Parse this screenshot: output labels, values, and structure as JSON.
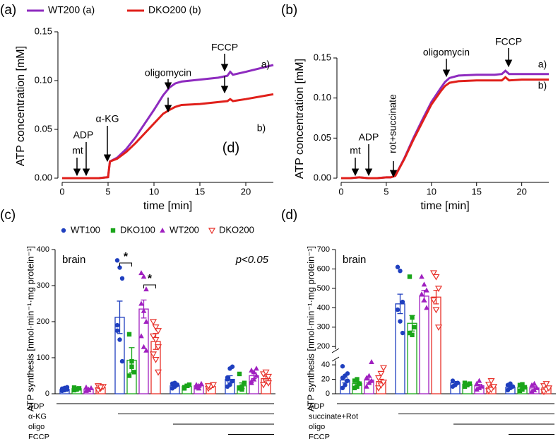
{
  "chart_data": [
    {
      "type": "line",
      "panel_label": "(a)",
      "xlabel": "time [min]",
      "ylabel": "ATP concentration [mM]",
      "xlim": [
        0,
        23
      ],
      "xticks": [
        0,
        5,
        10,
        15,
        20
      ],
      "ylim": [
        0,
        0.15
      ],
      "yticks": [
        {
          "value": 0,
          "label": "0.00"
        },
        {
          "value": 0.05,
          "label": "0.05"
        },
        {
          "value": 0.1,
          "label": "0.10"
        },
        {
          "value": 0.15,
          "label": "0.15"
        }
      ],
      "x": [
        0,
        1,
        2,
        3,
        4,
        5,
        5.2,
        6,
        7,
        8,
        9,
        10,
        11,
        11.7,
        12.3,
        13,
        15,
        17,
        18,
        18.3,
        18.6,
        20,
        23
      ],
      "series": [
        {
          "name": "WT200 (a)",
          "color": "#8e2bbf",
          "values": [
            0,
            0,
            0,
            0,
            0,
            0.001,
            0.017,
            0.021,
            0.03,
            0.042,
            0.056,
            0.07,
            0.085,
            0.093,
            0.097,
            0.099,
            0.101,
            0.103,
            0.105,
            0.109,
            0.106,
            0.109,
            0.116
          ]
        },
        {
          "name": "DKO200 (b)",
          "color": "#e0201b",
          "values": [
            0,
            0,
            0,
            0,
            0,
            0.001,
            0.017,
            0.02,
            0.027,
            0.036,
            0.046,
            0.056,
            0.066,
            0.07,
            0.073,
            0.075,
            0.076,
            0.078,
            0.079,
            0.081,
            0.079,
            0.081,
            0.086
          ]
        }
      ],
      "annotations": [
        "mt",
        "ADP",
        "α-KG",
        "oligomycin",
        "FCCP",
        "a)",
        "b)",
        "(d)"
      ]
    },
    {
      "type": "line",
      "panel_label": "(b)",
      "xlabel": "time [min]",
      "ylabel": "ATP concentration [mM]",
      "xlim": [
        0,
        23
      ],
      "xticks": [
        0,
        5,
        10,
        15,
        20
      ],
      "ylim": [
        0,
        0.15
      ],
      "yticks": [
        {
          "value": 0,
          "label": "0.00"
        },
        {
          "value": 0.05,
          "label": "0.05"
        },
        {
          "value": 0.1,
          "label": "0.10"
        },
        {
          "value": 0.15,
          "label": "0.15"
        }
      ],
      "x": [
        0,
        1,
        2,
        3,
        4,
        5,
        5.5,
        6,
        7,
        8,
        9,
        10,
        11,
        11.5,
        12,
        13,
        15,
        17,
        17.8,
        18.2,
        18.6,
        20,
        23
      ],
      "series": [
        {
          "color": "#8e2bbf",
          "values": [
            0,
            0,
            0.001,
            0,
            0,
            0.001,
            0.001,
            0.003,
            0.025,
            0.05,
            0.073,
            0.095,
            0.112,
            0.12,
            0.125,
            0.128,
            0.129,
            0.129,
            0.13,
            0.134,
            0.13,
            0.13,
            0.13
          ]
        },
        {
          "color": "#e0201b",
          "values": [
            0,
            0,
            0.001,
            0,
            0,
            0.001,
            0.001,
            0.003,
            0.024,
            0.048,
            0.07,
            0.092,
            0.108,
            0.115,
            0.119,
            0.121,
            0.122,
            0.122,
            0.122,
            0.126,
            0.122,
            0.123,
            0.123
          ]
        }
      ],
      "annotations": [
        "mt",
        "ADP",
        "rot+succinate",
        "oligomycin",
        "FCCP",
        "a)",
        "b)"
      ]
    },
    {
      "type": "bar",
      "panel_label": "(c)",
      "ylabel": "ATP synthesis [nmol·min⁻¹·mg protein⁻¹]",
      "categories": [
        "ADP",
        "α-KG",
        "oligo",
        "FCCP"
      ],
      "ylim": [
        0,
        400
      ],
      "yticks": [
        0,
        100,
        200,
        300,
        400
      ],
      "annotations": [
        "brain",
        "p<0.05"
      ],
      "significance": [
        "*",
        "*"
      ],
      "series": [
        {
          "name": "WT100",
          "color": "#1f3fbf",
          "marker": "circle",
          "values": [
            12,
            212,
            22,
            40
          ],
          "errors": [
            1.5,
            45,
            3,
            10
          ],
          "points": [
            [
              8,
              10,
              12,
              14,
              16,
              18,
              10
            ],
            [
              370,
              350,
              320,
              175,
              150,
              90,
              190
            ],
            [
              15,
              20,
              25,
              28,
              30
            ],
            [
              20,
              25,
              35,
              45,
              70,
              75,
              40
            ]
          ]
        },
        {
          "name": "DKO100",
          "color": "#1aa51a",
          "marker": "square",
          "values": [
            14,
            93,
            20,
            22
          ],
          "errors": [
            1.5,
            35,
            3,
            8
          ],
          "points": [
            [
              10,
              12,
              15,
              17,
              14
            ],
            [
              165,
              90,
              60,
              50,
              75
            ],
            [
              18,
              22,
              25,
              15
            ],
            [
              15,
              20,
              30,
              55,
              12
            ]
          ]
        },
        {
          "name": "WT200",
          "color": "#a020c0",
          "marker": "triangle",
          "values": [
            13,
            235,
            22,
            50
          ],
          "errors": [
            1.5,
            25,
            3,
            8
          ],
          "points": [
            [
              8,
              12,
              16,
              18,
              10
            ],
            [
              335,
              325,
              290,
              250,
              230,
              200,
              160,
              130,
              120
            ],
            [
              18,
              22,
              28,
              25,
              15
            ],
            [
              30,
              40,
              50,
              65,
              60,
              70,
              35
            ]
          ]
        },
        {
          "name": "DKO200",
          "color": "#e8312a",
          "marker": "triangle-down-open",
          "values": [
            17,
            145,
            20,
            42
          ],
          "errors": [
            2,
            22,
            3,
            7
          ],
          "points": [
            [
              10,
              15,
              20,
              22,
              18
            ],
            [
              200,
              185,
              175,
              160,
              150,
              130,
              110,
              95,
              60
            ],
            [
              15,
              20,
              25,
              22
            ],
            [
              25,
              35,
              48,
              55,
              60,
              30
            ]
          ]
        }
      ]
    },
    {
      "type": "bar",
      "panel_label": "(d)",
      "ylabel": "ATP synthesis [nmol·min⁻¹·mg protein⁻¹]",
      "categories": [
        "ADP",
        "succinate+Rot",
        "oligo",
        "FCCP"
      ],
      "ylim": [
        0,
        700
      ],
      "axis_break": [
        45,
        190
      ],
      "yticks": [
        0,
        20,
        40,
        200,
        300,
        400,
        500,
        600,
        700
      ],
      "annotations": [
        "brain"
      ],
      "series": [
        {
          "color": "#1f3fbf",
          "marker": "circle",
          "values": [
            19,
            420,
            15,
            9
          ],
          "errors": [
            4,
            50,
            2,
            2
          ],
          "points": [
            [
              8,
              12,
              18,
              22,
              25,
              28,
              38
            ],
            [
              610,
              590,
              430,
              390,
              330,
              270
            ],
            [
              10,
              12,
              15,
              18
            ],
            [
              5,
              8,
              10,
              12,
              14
            ]
          ]
        },
        {
          "color": "#1aa51a",
          "marker": "square",
          "values": [
            14,
            320,
            13,
            9
          ],
          "errors": [
            3,
            40,
            2,
            2
          ],
          "points": [
            [
              8,
              10,
              14,
              18,
              20
            ],
            [
              560,
              350,
              300,
              270,
              260
            ],
            [
              10,
              12,
              14,
              15
            ],
            [
              4,
              6,
              9,
              12,
              13
            ]
          ]
        },
        {
          "color": "#a020c0",
          "marker": "triangle",
          "values": [
            19,
            460,
            11,
            8
          ],
          "errors": [
            4,
            30,
            2,
            2
          ],
          "points": [
            [
              10,
              15,
              18,
              22,
              25,
              44
            ],
            [
              560,
              520,
              490,
              470,
              440,
              400
            ],
            [
              6,
              8,
              10,
              14,
              18
            ],
            [
              3,
              5,
              8,
              12,
              14
            ]
          ]
        },
        {
          "color": "#e8312a",
          "marker": "triangle-down-open",
          "values": [
            17,
            455,
            9,
            8
          ],
          "errors": [
            3,
            35,
            2,
            2
          ],
          "points": [
            [
              8,
              12,
              16,
              22,
              28,
              36
            ],
            [
              580,
              560,
              500,
              440,
              390,
              300
            ],
            [
              4,
              6,
              10,
              13,
              18
            ],
            [
              3,
              6,
              8,
              11,
              14
            ]
          ]
        }
      ]
    }
  ]
}
